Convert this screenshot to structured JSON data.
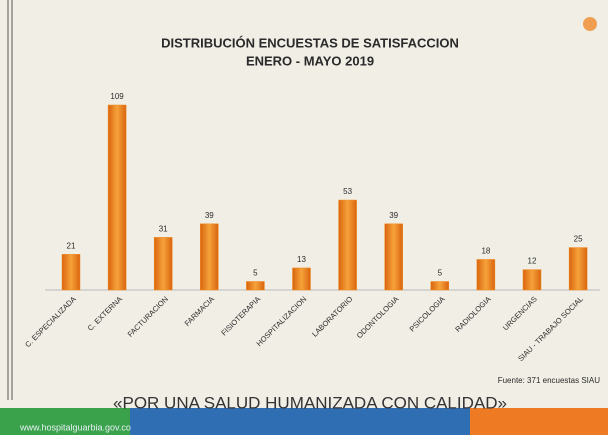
{
  "chart_data": {
    "type": "bar",
    "title": "DISTRIBUCIÓN ENCUESTAS DE SATISFACCION",
    "subtitle": "ENERO - MAYO 2019",
    "categories": [
      "C. ESPECIALIZADA",
      "C. EXTERNA",
      "FACTURACION",
      "FARMACIA",
      "FISIOTERAPIA",
      "HOSPITALIZACION",
      "LABORATORIO",
      "ODONTOLOGIA",
      "PSICOLOGIA",
      "RADIOLOGIA",
      "URGENCIAS",
      "SIAU - TRABAJO SOCIAL"
    ],
    "values": [
      21,
      109,
      31,
      39,
      5,
      13,
      53,
      39,
      5,
      18,
      12,
      25
    ],
    "color": "#f08a1c",
    "note": "Fuente: 371 encuestas SIAU"
  },
  "slogan": "«POR UNA SALUD HUMANIZADA CON CALIDAD»",
  "url": "www.hospitalguarbia.gov.co"
}
